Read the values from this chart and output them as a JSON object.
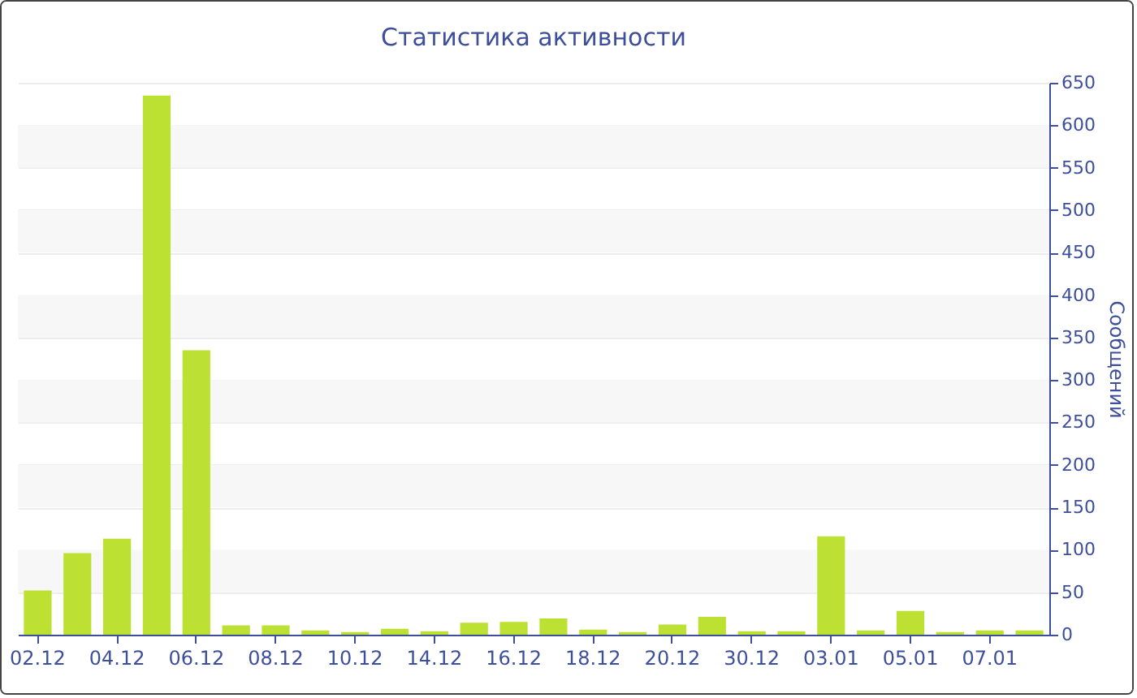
{
  "chart_data": {
    "type": "bar",
    "title": "Статистика активности",
    "ylabel": "Сообщений",
    "categories": [
      "02.12",
      null,
      "04.12",
      null,
      "06.12",
      null,
      "08.12",
      null,
      "10.12",
      null,
      "14.12",
      null,
      "16.12",
      null,
      "18.12",
      null,
      "20.12",
      null,
      "30.12",
      null,
      "03.01",
      null,
      "05.01",
      null,
      "07.01",
      null
    ],
    "values": [
      52,
      96,
      113,
      635,
      335,
      11,
      11,
      5,
      3,
      7,
      4,
      14,
      15,
      19,
      6,
      3,
      12,
      21,
      4,
      4,
      116,
      5,
      28,
      3,
      5,
      5
    ],
    "color": "#bde132",
    "ylim": [
      0,
      650
    ],
    "yticks": [
      0,
      50,
      100,
      150,
      200,
      250,
      300,
      350,
      400,
      450,
      500,
      550,
      600,
      650
    ],
    "grid": "y"
  }
}
